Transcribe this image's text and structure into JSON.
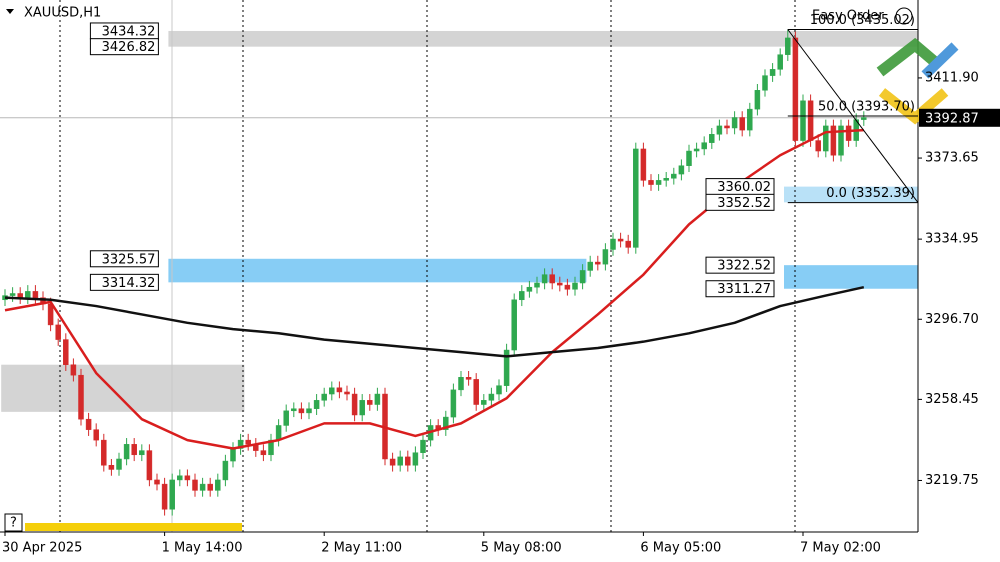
{
  "chart_data": {
    "type": "candlestick",
    "title": "XAUUSD,H1",
    "toolbar_label": "Easy Order",
    "help_label": "?",
    "categories": [
      "30 Apr 2025",
      null,
      null,
      null,
      null,
      null,
      null,
      null,
      null,
      null,
      null,
      null,
      null,
      null,
      null,
      null,
      null,
      null,
      null,
      null,
      null,
      "1 May 14:00",
      null,
      null,
      null,
      null,
      null,
      null,
      null,
      null,
      null,
      null,
      null,
      null,
      null,
      null,
      null,
      null,
      null,
      null,
      null,
      null,
      "2 May 11:00",
      null,
      null,
      null,
      null,
      null,
      null,
      null,
      null,
      null,
      null,
      null,
      null,
      null,
      null,
      null,
      null,
      null,
      null,
      null,
      null,
      "5 May 08:00",
      null,
      null,
      null,
      null,
      null,
      null,
      null,
      null,
      null,
      null,
      null,
      null,
      null,
      null,
      null,
      null,
      null,
      null,
      null,
      null,
      "6 May 05:00",
      null,
      null,
      null,
      null,
      null,
      null,
      null,
      null,
      null,
      null,
      null,
      null,
      null,
      null,
      null,
      null,
      null,
      null,
      null,
      null,
      "7 May 02:00",
      null,
      null,
      null,
      null,
      null,
      null,
      null,
      null
    ],
    "open": [
      3306,
      3308,
      3309,
      3307,
      3310,
      3307,
      3304,
      3294,
      3287,
      3275,
      3270,
      3249,
      3244,
      3239,
      3227,
      3225,
      3230,
      3237,
      3232,
      3234,
      3220,
      3218,
      3206,
      3220,
      3222,
      3220,
      3215,
      3218,
      3215,
      3220,
      3229,
      3235,
      3239,
      3237,
      3234,
      3232,
      3239,
      3246,
      3253,
      3254,
      3252,
      3254,
      3258,
      3261,
      3264,
      3262,
      3261,
      3251,
      3258,
      3256,
      3261,
      3230,
      3227,
      3231,
      3227,
      3233,
      3239,
      3246,
      3244,
      3250,
      3263,
      3269,
      3268,
      3256,
      3258,
      3261,
      3265,
      3282,
      3306,
      3310,
      3312,
      3314,
      3318,
      3314,
      3313,
      3311,
      3314,
      3320,
      3324,
      3323,
      3330,
      3335,
      3334,
      3331,
      3378,
      3363,
      3361,
      3363,
      3364,
      3366,
      3370,
      3377,
      3378,
      3381,
      3385,
      3389,
      3388,
      3393,
      3387,
      3397,
      3406,
      3413,
      3416,
      3423,
      3431,
      3382,
      3401,
      3382,
      3377,
      3389,
      3375,
      3389,
      3382,
      3392
    ],
    "high": [
      3311,
      3312,
      3312,
      3313,
      3313,
      3310,
      3307,
      3297,
      3290,
      3278,
      3273,
      3252,
      3247,
      3242,
      3230,
      3233,
      3240,
      3240,
      3237,
      3237,
      3223,
      3221,
      3223,
      3225,
      3225,
      3223,
      3221,
      3221,
      3223,
      3232,
      3238,
      3242,
      3242,
      3240,
      3237,
      3242,
      3249,
      3256,
      3257,
      3257,
      3257,
      3261,
      3264,
      3267,
      3267,
      3265,
      3264,
      3261,
      3261,
      3264,
      3264,
      3233,
      3234,
      3234,
      3236,
      3242,
      3249,
      3249,
      3253,
      3266,
      3272,
      3272,
      3271,
      3261,
      3264,
      3268,
      3285,
      3309,
      3313,
      3315,
      3317,
      3321,
      3321,
      3317,
      3316,
      3317,
      3323,
      3327,
      3327,
      3333,
      3338,
      3338,
      3337,
      3381,
      3381,
      3366,
      3366,
      3367,
      3369,
      3373,
      3380,
      3381,
      3384,
      3388,
      3392,
      3392,
      3396,
      3396,
      3400,
      3409,
      3416,
      3419,
      3426,
      3435,
      3434,
      3404,
      3404,
      3385,
      3392,
      3392,
      3392,
      3392,
      3395,
      3396
    ],
    "low": [
      3303,
      3305,
      3304,
      3304,
      3304,
      3301,
      3291,
      3284,
      3272,
      3267,
      3246,
      3241,
      3236,
      3224,
      3222,
      3222,
      3227,
      3229,
      3229,
      3217,
      3215,
      3203,
      3203,
      3217,
      3217,
      3212,
      3212,
      3212,
      3212,
      3217,
      3226,
      3232,
      3234,
      3231,
      3229,
      3229,
      3236,
      3243,
      3250,
      3249,
      3249,
      3251,
      3255,
      3258,
      3259,
      3258,
      3248,
      3248,
      3253,
      3253,
      3227,
      3224,
      3224,
      3224,
      3224,
      3230,
      3236,
      3241,
      3241,
      3247,
      3260,
      3265,
      3253,
      3253,
      3255,
      3258,
      3262,
      3279,
      3303,
      3307,
      3309,
      3311,
      3311,
      3310,
      3308,
      3308,
      3311,
      3317,
      3320,
      3320,
      3327,
      3331,
      3328,
      3328,
      3360,
      3358,
      3358,
      3360,
      3361,
      3363,
      3367,
      3374,
      3375,
      3378,
      3382,
      3385,
      3385,
      3384,
      3384,
      3394,
      3403,
      3410,
      3413,
      3420,
      3379,
      3379,
      3379,
      3374,
      3374,
      3372,
      3372,
      3379,
      3379,
      3389
    ],
    "close": [
      3308,
      3309,
      3307,
      3310,
      3307,
      3304,
      3294,
      3287,
      3275,
      3270,
      3249,
      3244,
      3239,
      3227,
      3225,
      3230,
      3237,
      3232,
      3234,
      3220,
      3218,
      3206,
      3220,
      3222,
      3220,
      3215,
      3218,
      3215,
      3220,
      3229,
      3235,
      3239,
      3237,
      3234,
      3232,
      3239,
      3246,
      3253,
      3254,
      3252,
      3254,
      3258,
      3261,
      3264,
      3262,
      3261,
      3251,
      3258,
      3256,
      3261,
      3230,
      3227,
      3231,
      3227,
      3233,
      3239,
      3246,
      3244,
      3250,
      3263,
      3269,
      3268,
      3256,
      3258,
      3261,
      3265,
      3282,
      3306,
      3310,
      3312,
      3314,
      3318,
      3314,
      3313,
      3311,
      3314,
      3320,
      3324,
      3323,
      3330,
      3335,
      3334,
      3331,
      3378,
      3363,
      3361,
      3363,
      3364,
      3366,
      3370,
      3377,
      3378,
      3381,
      3385,
      3389,
      3388,
      3393,
      3387,
      3397,
      3406,
      3413,
      3416,
      3423,
      3431,
      3382,
      3401,
      3382,
      3377,
      3389,
      3375,
      3389,
      3382,
      3392,
      3393
    ],
    "up_color": "#2fa84f",
    "down_color": "#d42a2a",
    "lines": [
      {
        "color": "#d91e1e",
        "x": [
          0,
          6,
          12,
          18,
          24,
          30,
          36,
          42,
          48,
          54,
          60,
          66,
          72,
          78,
          84,
          90,
          96,
          102,
          108,
          113
        ],
        "values": [
          3301,
          3305,
          3271,
          3249,
          3239,
          3235,
          3239,
          3247,
          3247,
          3241,
          3247,
          3259,
          3281,
          3299,
          3318,
          3342,
          3360,
          3375,
          3386,
          3387
        ]
      },
      {
        "color": "#111111",
        "x": [
          0,
          6,
          12,
          18,
          24,
          30,
          36,
          42,
          48,
          54,
          60,
          66,
          72,
          78,
          84,
          90,
          96,
          102,
          108,
          113
        ],
        "values": [
          3307,
          3306,
          3303,
          3299,
          3295,
          3292,
          3290,
          3287,
          3285,
          3283,
          3281,
          3279,
          3281,
          3283,
          3286,
          3290,
          3295,
          3303,
          3308,
          3312
        ]
      }
    ],
    "zones": [
      {
        "high": 3434.32,
        "low": 3426.82,
        "start": 22,
        "color": "#d4d4d4",
        "labeled": true
      },
      {
        "high": 3325.57,
        "low": 3314.32,
        "start": 22,
        "end": 76,
        "color": "#87cdf5",
        "labeled": true
      },
      {
        "high": 3275,
        "low": 3252.5,
        "start": 0,
        "end": 31,
        "color": "#d4d4d4",
        "labeled": false
      },
      {
        "high": 3360.02,
        "low": 3352.52,
        "start": 103,
        "color": "#b9e1f7",
        "labeled": true
      },
      {
        "high": 3322.52,
        "low": 3311.27,
        "start": 103,
        "color": "#87cdf5",
        "labeled": true
      }
    ],
    "fib": {
      "start": 103,
      "levels": [
        {
          "value": 3435.02,
          "label": "100.0 (3435.02)"
        },
        {
          "value": 3393.7,
          "label": "50.0 (3393.70)"
        },
        {
          "value": 3352.39,
          "label": "0.0 (3352.39)"
        }
      ]
    },
    "current_price": 3392.87,
    "ylim": [
      3196.1,
      3449.1
    ],
    "yticks": [
      3219.75,
      3258.45,
      {
        "value": 3296.7,
        "label": "3296.70"
      },
      3334.95,
      3373.65,
      {
        "value": 3411.9,
        "label": "3411.90"
      }
    ]
  }
}
